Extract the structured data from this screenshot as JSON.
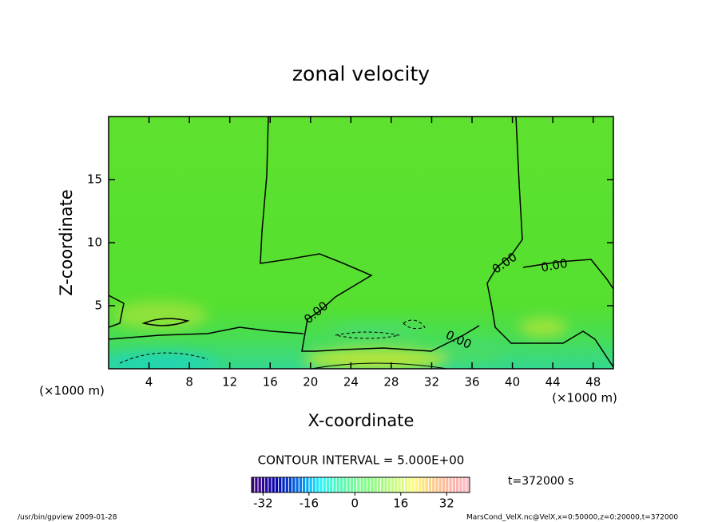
{
  "chart_data": {
    "type": "contour",
    "title": "zonal velocity",
    "x_label": "X-coordinate",
    "y_label": "Z-coordinate",
    "x_unit": "(×1000 m)",
    "xlim": [
      0,
      50
    ],
    "xticks": [
      4,
      8,
      12,
      16,
      20,
      24,
      28,
      32,
      36,
      40,
      44,
      48
    ],
    "ylim": [
      0,
      20
    ],
    "yticks": [
      5,
      10,
      15
    ],
    "contour_labels": [
      "0.00",
      "0.00",
      "0.00",
      "0.00"
    ],
    "contour_interval_label": "CONTOUR INTERVAL = 5.000E+00",
    "time_label": "t=372000 s",
    "colorbar": {
      "lim": [
        -36,
        40
      ],
      "ticks": [
        -32,
        -16,
        0,
        16,
        32
      ]
    },
    "footer_left": "/usr/bin/gpview  2009-01-28",
    "footer_right": "MarsCond_VelX.nc@VelX,x=0:50000,z=0:20000,t=372000"
  }
}
